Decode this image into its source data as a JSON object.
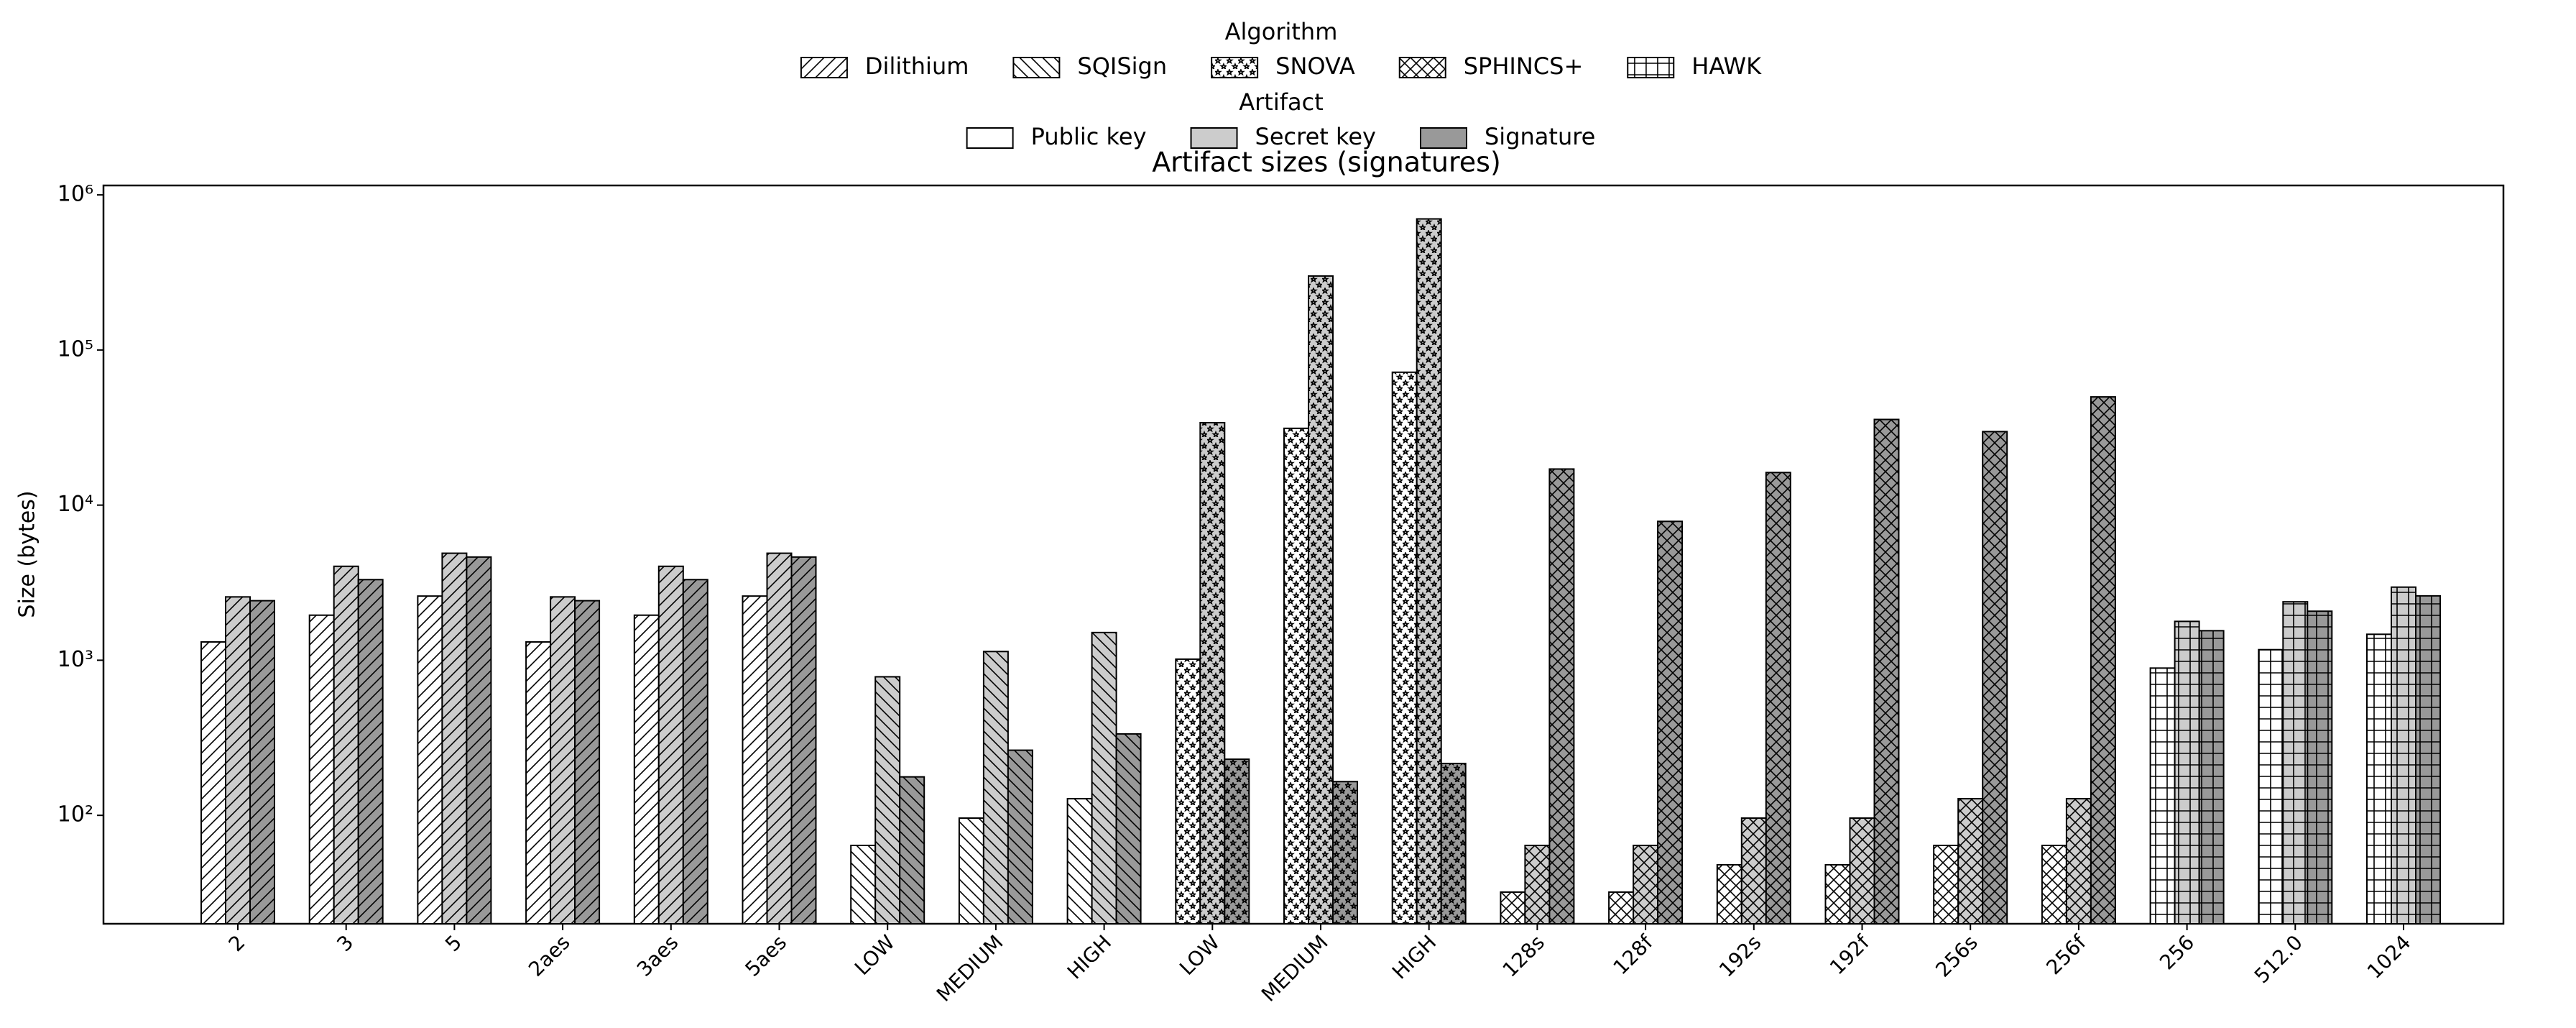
{
  "chart_data": {
    "type": "grouped-bar",
    "title": "Artifact sizes (signatures)",
    "ylabel": "Size (bytes)",
    "yscale": "log",
    "ylim": [
      20,
      1150000
    ],
    "yticks": [
      {
        "value": 100,
        "label": "10²"
      },
      {
        "value": 1000,
        "label": "10³"
      },
      {
        "value": 10000,
        "label": "10⁴"
      },
      {
        "value": 100000,
        "label": "10⁵"
      },
      {
        "value": 1000000,
        "label": "10⁶"
      }
    ],
    "algorithm_legend_title": "Algorithm",
    "artifact_legend_title": "Artifact",
    "artifacts": [
      {
        "name": "Public key",
        "color": "#ffffff"
      },
      {
        "name": "Secret key",
        "color": "#cccccc"
      },
      {
        "name": "Signature",
        "color": "#999999"
      }
    ],
    "algorithms": [
      {
        "name": "Dilithium",
        "hatch": "/",
        "categories": [
          "2",
          "3",
          "5",
          "2aes",
          "3aes",
          "5aes"
        ],
        "values": [
          [
            1312,
            1952,
            2592,
            1312,
            1952,
            2592
          ],
          [
            2560,
            4032,
            4896,
            2560,
            4032,
            4896
          ],
          [
            2420,
            3309,
            4627,
            2420,
            3309,
            4627
          ]
        ]
      },
      {
        "name": "SQISign",
        "hatch": "\\",
        "categories": [
          "LOW",
          "MEDIUM",
          "HIGH"
        ],
        "values": [
          [
            64,
            96,
            128
          ],
          [
            782,
            1138,
            1509
          ],
          [
            177,
            263,
            335
          ]
        ]
      },
      {
        "name": "SNOVA",
        "hatch": "*",
        "categories": [
          "LOW",
          "MEDIUM",
          "HIGH"
        ],
        "values": [
          [
            1016,
            31266,
            71890
          ],
          [
            34000,
            300000,
            700000
          ],
          [
            230,
            165,
            216
          ]
        ]
      },
      {
        "name": "SPHINCS+",
        "hatch": "x",
        "categories": [
          "128s",
          "128f",
          "192s",
          "192f",
          "256s",
          "256f"
        ],
        "values": [
          [
            32,
            32,
            48,
            48,
            64,
            64
          ],
          [
            64,
            64,
            96,
            96,
            128,
            128
          ],
          [
            17088,
            7856,
            16224,
            35664,
            29792,
            49856
          ]
        ]
      },
      {
        "name": "HAWK",
        "hatch": "+",
        "categories": [
          "256",
          "512.0",
          "1024"
        ],
        "values": [
          [
            890,
            1170,
            1470
          ],
          [
            1780,
            2380,
            2960
          ],
          [
            1550,
            2070,
            2600
          ]
        ]
      }
    ]
  }
}
